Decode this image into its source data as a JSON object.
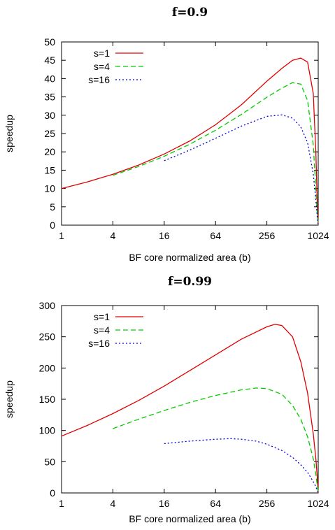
{
  "chart_data": [
    {
      "type": "line",
      "title": "f=0.9",
      "xlabel": "BF core normalized area (b)",
      "ylabel": "speedup",
      "xscale": "log2",
      "xlim": [
        1,
        1024
      ],
      "ylim": [
        0,
        50
      ],
      "xticks": [
        1,
        4,
        16,
        64,
        256,
        1024
      ],
      "xtick_labels": [
        "1",
        "4",
        "16",
        "64",
        "256",
        "1024"
      ],
      "yticks": [
        0,
        5,
        10,
        15,
        20,
        25,
        30,
        35,
        40,
        45,
        50
      ],
      "ytick_labels": [
        "0",
        "5",
        "10",
        "15",
        "20",
        "25",
        "30",
        "35",
        "40",
        "45",
        "50"
      ],
      "legend_position": "top-left",
      "series": [
        {
          "name": "s=1",
          "color": "#e00000",
          "dash": "solid",
          "x": [
            1,
            2,
            4,
            8,
            16,
            32,
            64,
            128,
            256,
            384,
            512,
            640,
            768,
            896,
            960,
            1000,
            1024
          ],
          "y": [
            10.0,
            11.8,
            13.9,
            16.4,
            19.4,
            23.0,
            27.4,
            32.8,
            39.3,
            42.8,
            45.0,
            45.6,
            44.5,
            36.0,
            20.0,
            6.0,
            0.0
          ]
        },
        {
          "name": "s=4",
          "color": "#00cc00",
          "dash": "dashed",
          "x": [
            4,
            8,
            16,
            32,
            64,
            128,
            256,
            384,
            512,
            640,
            768,
            896,
            960,
            1000,
            1024
          ],
          "y": [
            13.6,
            16.0,
            18.8,
            22.1,
            25.9,
            30.2,
            34.9,
            37.4,
            38.9,
            38.5,
            34.0,
            22.0,
            10.0,
            3.0,
            0.0
          ]
        },
        {
          "name": "s=16",
          "color": "#0000dd",
          "dash": "dotted",
          "x": [
            16,
            32,
            64,
            128,
            256,
            384,
            512,
            640,
            768,
            896,
            960,
            1000,
            1024
          ],
          "y": [
            17.6,
            20.5,
            23.7,
            27.0,
            29.7,
            30.1,
            29.2,
            26.8,
            22.5,
            14.0,
            7.0,
            2.0,
            0.0
          ]
        }
      ]
    },
    {
      "type": "line",
      "title": "f=0.99",
      "xlabel": "BF core normalized area (b)",
      "ylabel": "speedup",
      "xscale": "log2",
      "xlim": [
        1,
        1024
      ],
      "ylim": [
        0,
        300
      ],
      "xticks": [
        1,
        4,
        16,
        64,
        256,
        1024
      ],
      "xtick_labels": [
        "1",
        "4",
        "16",
        "64",
        "256",
        "1024"
      ],
      "yticks": [
        0,
        50,
        100,
        150,
        200,
        250,
        300
      ],
      "ytick_labels": [
        "0",
        "50",
        "100",
        "150",
        "200",
        "250",
        "300"
      ],
      "legend_position": "top-left",
      "series": [
        {
          "name": "s=1",
          "color": "#e00000",
          "dash": "solid",
          "x": [
            1,
            2,
            4,
            8,
            16,
            32,
            64,
            128,
            256,
            320,
            384,
            512,
            640,
            768,
            896,
            960,
            1000,
            1024
          ],
          "y": [
            91,
            108,
            127,
            148,
            171,
            196,
            221,
            246,
            266,
            270,
            268,
            250,
            210,
            160,
            95,
            55,
            25,
            0
          ]
        },
        {
          "name": "s=4",
          "color": "#00cc00",
          "dash": "dashed",
          "x": [
            4,
            8,
            16,
            32,
            64,
            128,
            192,
            256,
            384,
            512,
            640,
            768,
            896,
            960,
            1000,
            1024
          ],
          "y": [
            103,
            118,
            132,
            145,
            156,
            165,
            168,
            167,
            158,
            140,
            118,
            90,
            55,
            30,
            12,
            0
          ]
        },
        {
          "name": "s=16",
          "color": "#0000dd",
          "dash": "dotted",
          "x": [
            16,
            32,
            64,
            96,
            128,
            192,
            256,
            384,
            512,
            640,
            768,
            896,
            960,
            1000,
            1024
          ],
          "y": [
            79,
            83,
            86,
            87,
            86,
            83,
            78,
            68,
            57,
            45,
            33,
            18,
            10,
            4,
            0
          ]
        }
      ]
    }
  ]
}
